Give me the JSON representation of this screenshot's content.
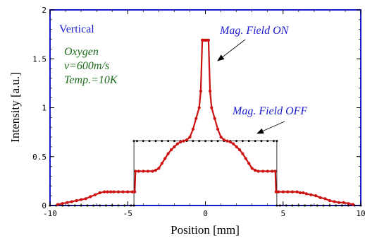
{
  "chart_data": {
    "type": "line",
    "xlabel": "Position [mm]",
    "ylabel": "Intensity [a.u.]",
    "xlim": [
      -10,
      10
    ],
    "ylim": [
      0,
      2
    ],
    "xticks": [
      "-10",
      "-5",
      "0",
      "5",
      "10"
    ],
    "yticks": [
      "0",
      "0.5",
      "1",
      "1.5",
      "2"
    ],
    "annotations": {
      "orientation": "Vertical",
      "species": [
        "Oxygen",
        "v=600m/s",
        "Temp.=10K"
      ],
      "field_on": "Mag. Field ON",
      "field_off": "Mag. Field OFF"
    },
    "colors": {
      "axis": "#1a1acd",
      "on": "#cc1111",
      "off": "#000000",
      "text_green": "#1e6b1e"
    },
    "series": [
      {
        "key": "on",
        "x": [
          -9.5,
          -9.2,
          -8.9,
          -8.6,
          -8.3,
          -8.0,
          -7.7,
          -7.4,
          -7.1,
          -6.8,
          -6.5,
          -6.3,
          -6.1,
          -5.9,
          -5.6,
          -5.3,
          -5.0,
          -4.7,
          -4.55,
          -4.5,
          -4.3,
          -4.0,
          -3.7,
          -3.4,
          -3.2,
          -3.0,
          -2.8,
          -2.6,
          -2.4,
          -2.2,
          -2.0,
          -1.8,
          -1.6,
          -1.4,
          -1.2,
          -1.0,
          -0.8,
          -0.6,
          -0.4,
          -0.3,
          -0.2,
          -0.1,
          0.0,
          0.1,
          0.2,
          0.3,
          0.4,
          0.6,
          0.8,
          1.0,
          1.2,
          1.4,
          1.6,
          1.8,
          2.0,
          2.2,
          2.4,
          2.6,
          2.8,
          3.0,
          3.2,
          3.4,
          3.7,
          4.0,
          4.3,
          4.5,
          4.55,
          4.7,
          5.0,
          5.3,
          5.6,
          5.9,
          6.1,
          6.3,
          6.5,
          6.8,
          7.1,
          7.4,
          7.7,
          8.0,
          8.3,
          8.6,
          8.9,
          9.2,
          9.5
        ],
        "y": [
          0.01,
          0.02,
          0.03,
          0.04,
          0.05,
          0.06,
          0.07,
          0.09,
          0.11,
          0.13,
          0.14,
          0.14,
          0.14,
          0.14,
          0.14,
          0.14,
          0.14,
          0.14,
          0.14,
          0.35,
          0.35,
          0.35,
          0.35,
          0.35,
          0.36,
          0.38,
          0.43,
          0.48,
          0.53,
          0.57,
          0.6,
          0.63,
          0.65,
          0.66,
          0.67,
          0.7,
          0.78,
          0.89,
          1.0,
          1.17,
          1.69,
          1.69,
          1.69,
          1.69,
          1.69,
          1.17,
          1.0,
          0.89,
          0.78,
          0.7,
          0.67,
          0.66,
          0.65,
          0.63,
          0.6,
          0.57,
          0.53,
          0.48,
          0.43,
          0.38,
          0.36,
          0.35,
          0.35,
          0.35,
          0.35,
          0.35,
          0.14,
          0.14,
          0.14,
          0.14,
          0.14,
          0.14,
          0.13,
          0.13,
          0.12,
          0.11,
          0.1,
          0.08,
          0.07,
          0.05,
          0.04,
          0.03,
          0.03,
          0.02,
          0.01
        ]
      },
      {
        "key": "off",
        "x": [
          -10,
          -9.6,
          -9.2,
          -8.8,
          -8.4,
          -8.0,
          -7.6,
          -7.2,
          -6.8,
          -6.4,
          -6.0,
          -5.6,
          -5.2,
          -4.8,
          -4.6,
          -4.6,
          -4.4,
          -4.0,
          -3.6,
          -3.2,
          -2.8,
          -2.4,
          -2.0,
          -1.6,
          -1.2,
          -0.8,
          -0.4,
          0.0,
          0.4,
          0.8,
          1.2,
          1.6,
          2.0,
          2.4,
          2.8,
          3.2,
          3.6,
          4.0,
          4.4,
          4.6,
          4.6,
          4.8,
          5.2,
          5.6,
          6.0,
          6.4,
          6.8,
          7.2,
          7.6,
          8.0,
          8.4,
          8.8,
          9.2,
          9.6,
          10
        ],
        "y": [
          0,
          0,
          0,
          0,
          0,
          0,
          0,
          0,
          0,
          0,
          0,
          0,
          0,
          0,
          0,
          0.66,
          0.66,
          0.66,
          0.66,
          0.66,
          0.66,
          0.66,
          0.66,
          0.66,
          0.66,
          0.66,
          0.66,
          0.66,
          0.66,
          0.66,
          0.66,
          0.66,
          0.66,
          0.66,
          0.66,
          0.66,
          0.66,
          0.66,
          0.66,
          0.66,
          0,
          0,
          0,
          0,
          0,
          0,
          0,
          0,
          0,
          0,
          0,
          0,
          0,
          0,
          0
        ]
      }
    ]
  }
}
